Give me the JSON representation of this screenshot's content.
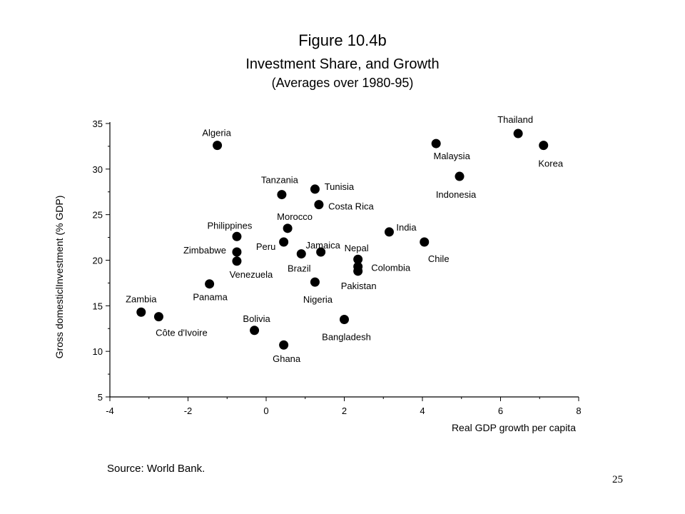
{
  "page": {
    "source": "Source: World Bank.",
    "page_number": "25"
  },
  "chart_data": {
    "type": "scatter",
    "title": "Figure 10.4b",
    "subtitle": "Investment Share, and Growth",
    "subtitle2": "(Averages over 1980-95)",
    "xlabel": "Real GDP growth per capita",
    "ylabel": "Gross domesticlInvestment (% GDP)",
    "xlim": [
      -4,
      8
    ],
    "ylim": [
      5,
      35
    ],
    "xticks": [
      -4,
      -2,
      0,
      2,
      4,
      6,
      8
    ],
    "yticks": [
      5,
      10,
      15,
      20,
      25,
      30,
      35
    ],
    "grid": false,
    "point_color": "#000000",
    "points": [
      {
        "label": "Algeria",
        "x": -1.25,
        "y": 32.6
      },
      {
        "label": "Thailand",
        "x": 6.45,
        "y": 33.9
      },
      {
        "label": "Malaysia",
        "x": 4.35,
        "y": 32.8
      },
      {
        "label": "Korea",
        "x": 7.1,
        "y": 32.6
      },
      {
        "label": "Indonesia",
        "x": 4.95,
        "y": 29.2
      },
      {
        "label": "Tanzania",
        "x": 0.4,
        "y": 27.2
      },
      {
        "label": "Tunisia",
        "x": 1.25,
        "y": 27.8
      },
      {
        "label": "Costa Rica",
        "x": 1.35,
        "y": 26.1
      },
      {
        "label": "Morocco",
        "x": 0.55,
        "y": 23.5
      },
      {
        "label": "Philippines",
        "x": -0.75,
        "y": 22.6
      },
      {
        "label": "India",
        "x": 3.15,
        "y": 23.1
      },
      {
        "label": "Chile",
        "x": 4.05,
        "y": 22.0
      },
      {
        "label": "Peru",
        "x": 0.45,
        "y": 22.0
      },
      {
        "label": "Jamaica",
        "x": 1.4,
        "y": 20.9
      },
      {
        "label": "Nepal",
        "x": 2.35,
        "y": 20.1
      },
      {
        "label": "Zimbabwe",
        "x": -0.75,
        "y": 20.9
      },
      {
        "label": "Venezuela",
        "x": -0.75,
        "y": 19.9
      },
      {
        "label": "Brazil",
        "x": 0.9,
        "y": 20.7
      },
      {
        "label": "Colombia",
        "x": 2.35,
        "y": 19.3
      },
      {
        "label": "Pakistan",
        "x": 2.35,
        "y": 18.8
      },
      {
        "label": "Panama",
        "x": -1.45,
        "y": 17.4
      },
      {
        "label": "Nigeria",
        "x": 1.25,
        "y": 17.6
      },
      {
        "label": "Zambia",
        "x": -3.2,
        "y": 14.3
      },
      {
        "label": "Côte d'Ivoire",
        "x": -2.75,
        "y": 13.8
      },
      {
        "label": "Bangladesh",
        "x": 2.0,
        "y": 13.5
      },
      {
        "label": "Bolivia",
        "x": -0.3,
        "y": 12.3
      },
      {
        "label": "Ghana",
        "x": 0.45,
        "y": 10.7
      }
    ]
  }
}
